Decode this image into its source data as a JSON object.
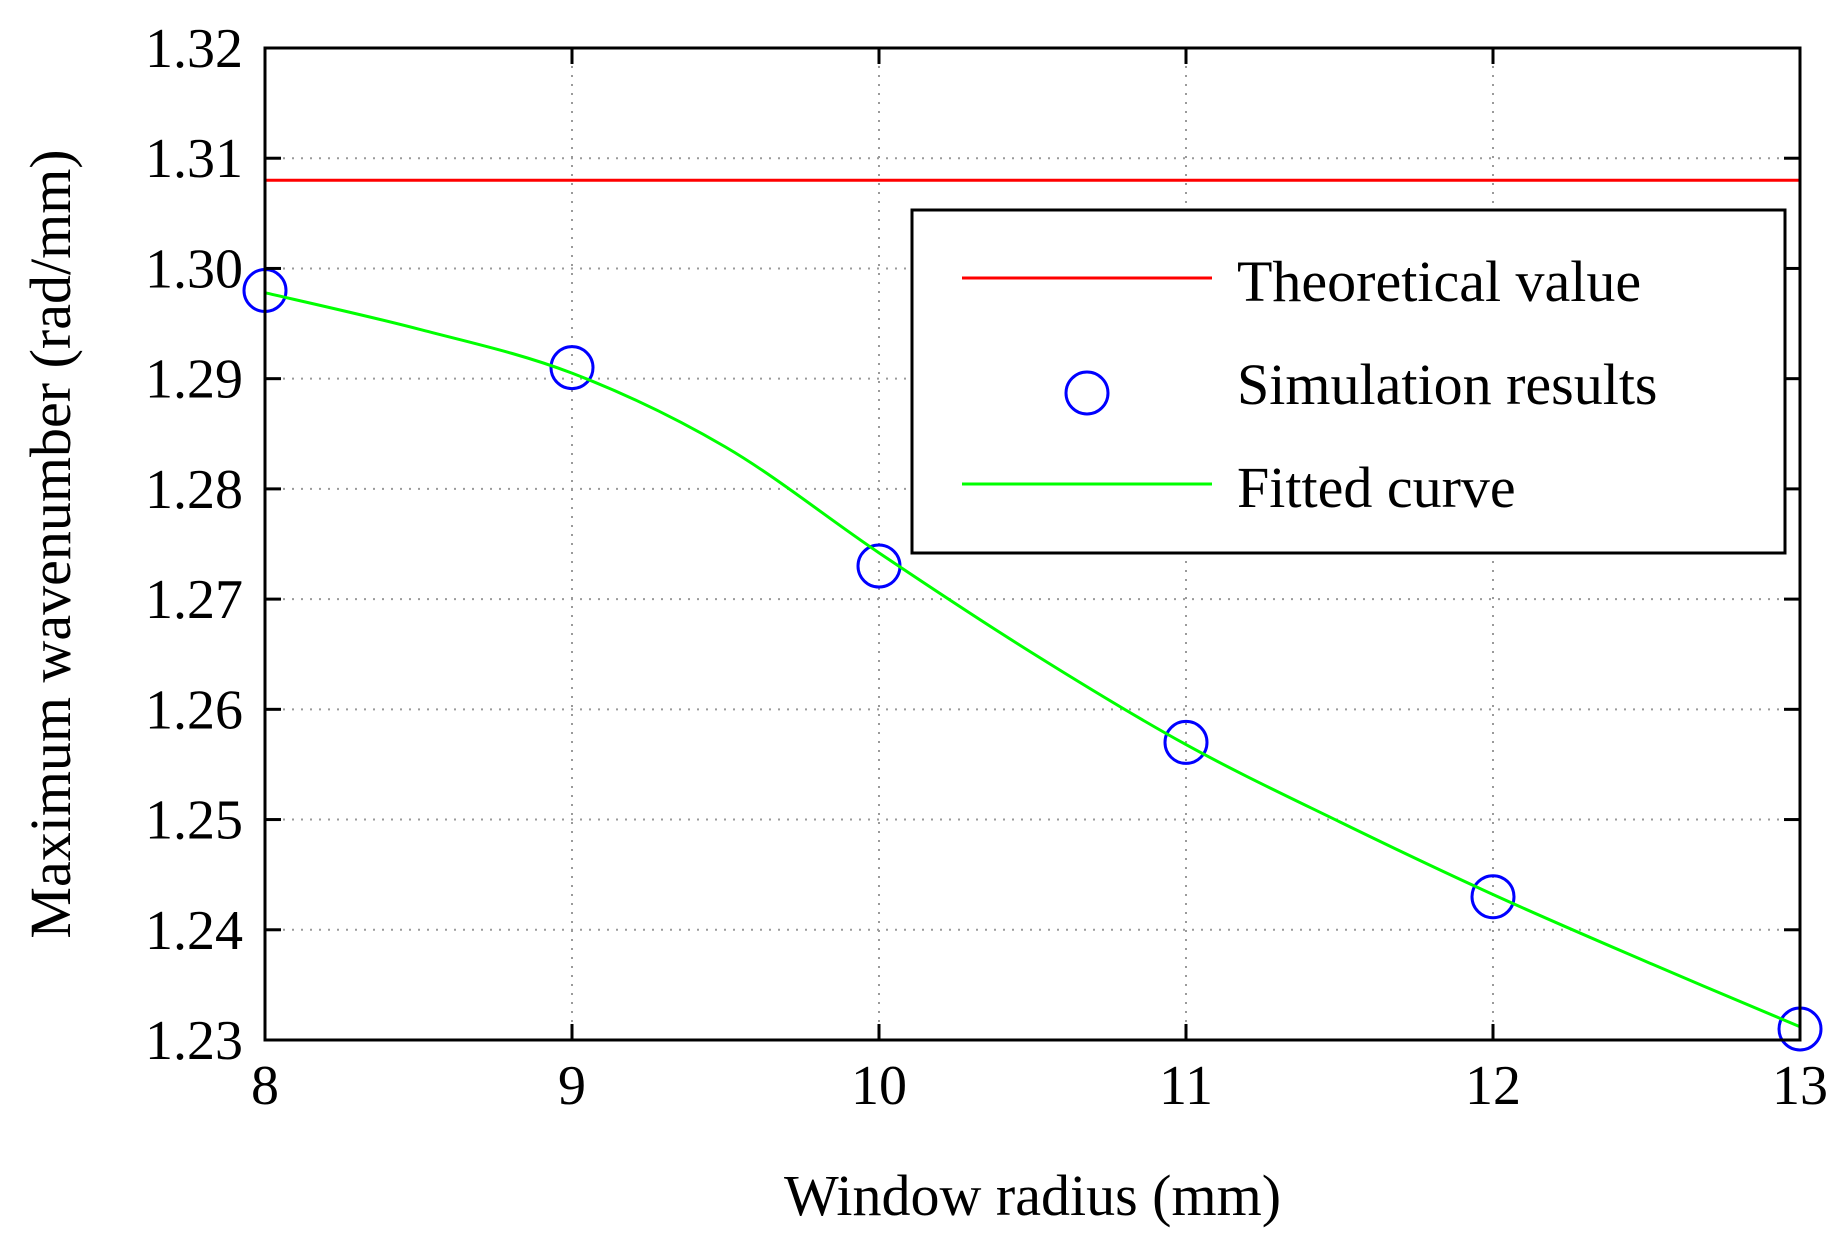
{
  "chart_data": {
    "type": "line",
    "title": "",
    "xlabel": "Window radius (mm)",
    "ylabel": "Maximum wavenumber (rad/mm)",
    "xlim": [
      8,
      13
    ],
    "ylim": [
      1.23,
      1.32
    ],
    "xticks": [
      8,
      9,
      10,
      11,
      12,
      13
    ],
    "xtick_labels": [
      "8",
      "9",
      "10",
      "11",
      "12",
      "13"
    ],
    "yticks": [
      1.23,
      1.24,
      1.25,
      1.26,
      1.27,
      1.28,
      1.29,
      1.3,
      1.31,
      1.32
    ],
    "ytick_labels": [
      "1.23",
      "1.24",
      "1.25",
      "1.26",
      "1.27",
      "1.28",
      "1.29",
      "1.30",
      "1.31",
      "1.32"
    ],
    "grid": true,
    "legend_position": "top-right",
    "series": [
      {
        "name": "Theoretical value",
        "kind": "line",
        "color": "#ff0000",
        "x": [
          8,
          13
        ],
        "y": [
          1.308,
          1.308
        ]
      },
      {
        "name": "Simulation results",
        "kind": "scatter",
        "marker": "circle",
        "color": "#0000ff",
        "x": [
          8,
          9,
          10,
          11,
          12,
          13
        ],
        "y": [
          1.298,
          1.291,
          1.273,
          1.257,
          1.243,
          1.231
        ]
      },
      {
        "name": "Fitted curve",
        "kind": "line",
        "color": "#00ff00",
        "x": [
          8,
          8.5,
          9,
          9.5,
          10,
          10.5,
          11,
          11.5,
          12,
          12.5,
          13
        ],
        "y": [
          1.2978,
          1.2945,
          1.2905,
          1.2838,
          1.2742,
          1.2651,
          1.2568,
          1.2498,
          1.2432,
          1.2371,
          1.2312
        ]
      }
    ]
  }
}
